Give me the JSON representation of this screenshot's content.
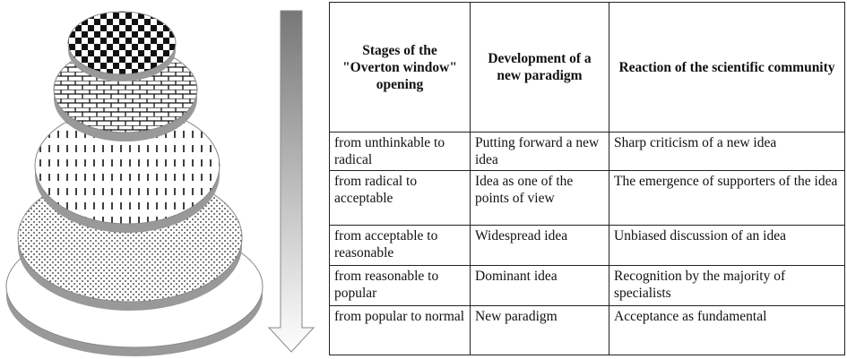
{
  "table": {
    "header": [
      "Stages of the \"Overton window\" opening",
      "Development of a new paradigm",
      "Reaction of the scientific community"
    ],
    "rows": [
      [
        "from unthinkable to radical",
        "Putting forward a new idea",
        "Sharp criticism of a new idea"
      ],
      [
        "from radical to acceptable",
        "Idea as one of the points of view",
        "The emergence of supporters of the idea"
      ],
      [
        "from acceptable to reasonable",
        "Widespread idea",
        "Unbiased discussion of an idea"
      ],
      [
        "from reasonable to popular",
        "Dominant idea",
        "Recognition by the majority of specialists"
      ],
      [
        "from popular to normal",
        "New paradigm",
        "Acceptance as fundamental"
      ]
    ]
  }
}
